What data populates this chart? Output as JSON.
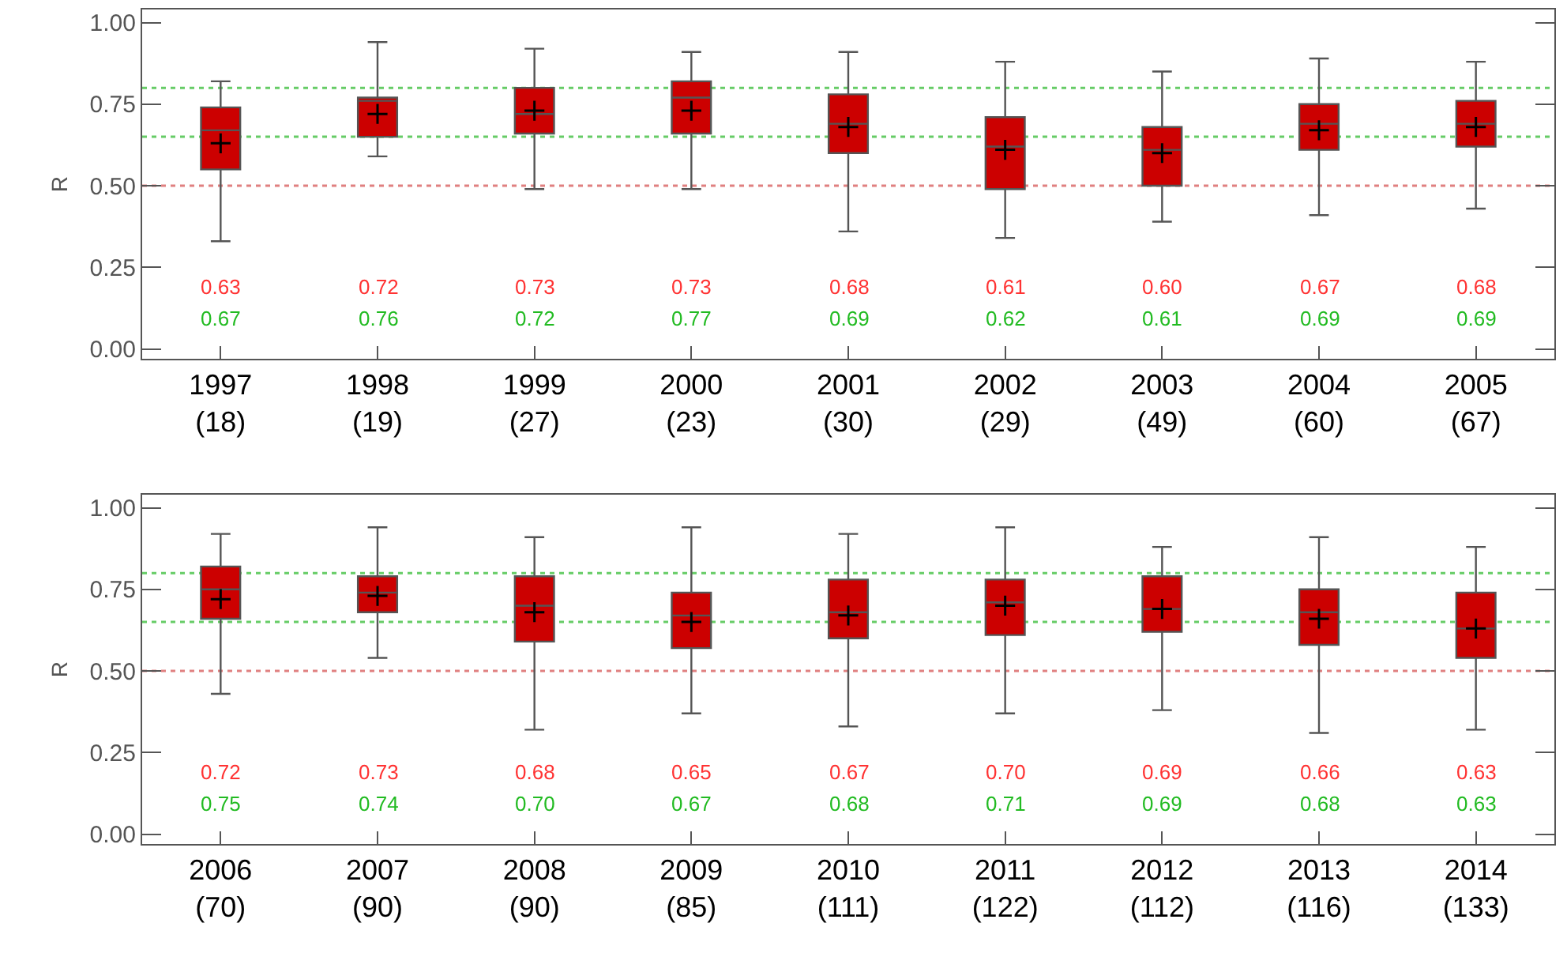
{
  "chart_data": [
    {
      "type": "box",
      "ylabel": "R",
      "categories": [
        "1997\n(18)",
        "1998\n(19)",
        "1999\n(27)",
        "2000\n(23)",
        "2001\n(30)",
        "2002\n(29)",
        "2003\n(49)",
        "2004\n(60)",
        "2005\n(67)"
      ],
      "color": "#cc0000",
      "ylim": [
        -0.03,
        1.04
      ],
      "yticks": [
        {
          "value": 0,
          "label": "0.00"
        },
        {
          "value": 0.25,
          "label": "0.25"
        },
        {
          "value": 0.5,
          "label": "0.50"
        },
        {
          "value": 0.75,
          "label": "0.75"
        },
        {
          "value": 1,
          "label": "1.00"
        }
      ],
      "marker": "cross",
      "boxes": [
        {
          "low": 0.33,
          "q1": 0.55,
          "median": 0.67,
          "q3": 0.74,
          "high": 0.82,
          "mean": 0.63
        },
        {
          "low": 0.59,
          "q1": 0.65,
          "median": 0.76,
          "q3": 0.77,
          "high": 0.94,
          "mean": 0.72
        },
        {
          "low": 0.49,
          "q1": 0.66,
          "median": 0.72,
          "q3": 0.8,
          "high": 0.92,
          "mean": 0.73
        },
        {
          "low": 0.49,
          "q1": 0.66,
          "median": 0.77,
          "q3": 0.82,
          "high": 0.91,
          "mean": 0.73
        },
        {
          "low": 0.36,
          "q1": 0.6,
          "median": 0.69,
          "q3": 0.78,
          "high": 0.91,
          "mean": 0.68
        },
        {
          "low": 0.34,
          "q1": 0.49,
          "median": 0.62,
          "q3": 0.71,
          "high": 0.88,
          "mean": 0.61
        },
        {
          "low": 0.39,
          "q1": 0.5,
          "median": 0.61,
          "q3": 0.68,
          "high": 0.85,
          "mean": 0.6
        },
        {
          "low": 0.41,
          "q1": 0.61,
          "median": 0.69,
          "q3": 0.75,
          "high": 0.89,
          "mean": 0.67
        },
        {
          "low": 0.43,
          "q1": 0.62,
          "median": 0.69,
          "q3": 0.76,
          "high": 0.88,
          "mean": 0.68
        }
      ],
      "annotations": [
        "0.63",
        "0.67",
        "0.72",
        "0.76",
        "0.73",
        "0.72",
        "0.73",
        "0.77",
        "0.68",
        "0.69",
        "0.61",
        "0.62",
        "0.60",
        "0.61",
        "0.67",
        "0.69",
        "0.68",
        "0.69"
      ],
      "ref_lines": [
        {
          "axis": "y",
          "value": 0.8,
          "color": "#66cc66",
          "line_style": "dotted"
        },
        {
          "axis": "y",
          "value": 0.65,
          "color": "#66cc66",
          "line_style": "dotted"
        },
        {
          "axis": "y",
          "value": 0.5,
          "color": "#e08080",
          "line_style": "dotted"
        }
      ]
    },
    {
      "type": "box",
      "ylabel": "R",
      "categories": [
        "2006\n(70)",
        "2007\n(90)",
        "2008\n(90)",
        "2009\n(85)",
        "2010\n(111)",
        "2011\n(122)",
        "2012\n(112)",
        "2013\n(116)",
        "2014\n(133)"
      ],
      "color": "#cc0000",
      "ylim": [
        -0.03,
        1.04
      ],
      "yticks": [
        {
          "value": 0,
          "label": "0.00"
        },
        {
          "value": 0.25,
          "label": "0.25"
        },
        {
          "value": 0.5,
          "label": "0.50"
        },
        {
          "value": 0.75,
          "label": "0.75"
        },
        {
          "value": 1,
          "label": "1.00"
        }
      ],
      "marker": "cross",
      "boxes": [
        {
          "low": 0.43,
          "q1": 0.66,
          "median": 0.75,
          "q3": 0.82,
          "high": 0.92,
          "mean": 0.72
        },
        {
          "low": 0.54,
          "q1": 0.68,
          "median": 0.74,
          "q3": 0.79,
          "high": 0.94,
          "mean": 0.73
        },
        {
          "low": 0.32,
          "q1": 0.59,
          "median": 0.7,
          "q3": 0.79,
          "high": 0.91,
          "mean": 0.68
        },
        {
          "low": 0.37,
          "q1": 0.57,
          "median": 0.67,
          "q3": 0.74,
          "high": 0.94,
          "mean": 0.65
        },
        {
          "low": 0.33,
          "q1": 0.6,
          "median": 0.68,
          "q3": 0.78,
          "high": 0.92,
          "mean": 0.67
        },
        {
          "low": 0.37,
          "q1": 0.61,
          "median": 0.71,
          "q3": 0.78,
          "high": 0.94,
          "mean": 0.7
        },
        {
          "low": 0.38,
          "q1": 0.62,
          "median": 0.69,
          "q3": 0.79,
          "high": 0.88,
          "mean": 0.69
        },
        {
          "low": 0.31,
          "q1": 0.58,
          "median": 0.68,
          "q3": 0.75,
          "high": 0.91,
          "mean": 0.66
        },
        {
          "low": 0.32,
          "q1": 0.54,
          "median": 0.63,
          "q3": 0.74,
          "high": 0.88,
          "mean": 0.63
        }
      ],
      "annotations": [
        "0.72",
        "0.75",
        "0.73",
        "0.74",
        "0.68",
        "0.70",
        "0.65",
        "0.67",
        "0.67",
        "0.68",
        "0.70",
        "0.71",
        "0.69",
        "0.69",
        "0.66",
        "0.68",
        "0.63",
        "0.63"
      ],
      "ref_lines": [
        {
          "axis": "y",
          "value": 0.8,
          "color": "#66cc66",
          "line_style": "dotted"
        },
        {
          "axis": "y",
          "value": 0.65,
          "color": "#66cc66",
          "line_style": "dotted"
        },
        {
          "axis": "y",
          "value": 0.5,
          "color": "#e08080",
          "line_style": "dotted"
        }
      ]
    }
  ]
}
